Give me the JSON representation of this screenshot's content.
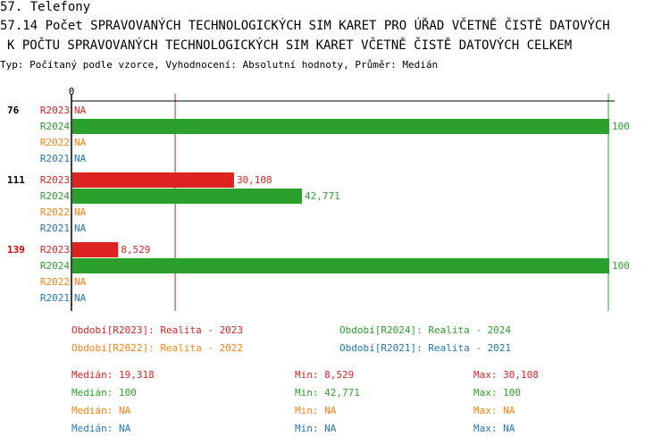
{
  "header": {
    "section": "57. Telefony",
    "title_line1": "57.14 Počet SPRAVOVANÝCH TECHNOLOGICKÝCH SIM KARET PRO ÚŘAD VČETNĚ ČISTĚ DATOVÝCH",
    "title_line2": "K POČTU SPRAVOVANÝCH TECHNOLOGICKÝCH SIM KARET VČETNĚ ČISTĚ DATOVÝCH CELKEM",
    "subtitle": "Typ: Počítaný podle vzorce, Vyhodnocení: Absolutní hodnoty, Průměr: Medián"
  },
  "chart_data": {
    "type": "bar",
    "orientation": "horizontal",
    "xlim": [
      0,
      100
    ],
    "x_tick_labels": [
      "0"
    ],
    "categories": [
      "76",
      "111",
      "139"
    ],
    "category_colors": [
      "#000000",
      "#000000",
      "#dd0000"
    ],
    "series": [
      {
        "name": "R2023",
        "color": "#dd2222",
        "values": [
          null,
          30.108,
          8.529
        ],
        "labels": [
          "NA",
          "30,108",
          "8,529"
        ]
      },
      {
        "name": "R2024",
        "color": "#2ca02c",
        "values": [
          100,
          42.771,
          100
        ],
        "labels": [
          "100",
          "42,771",
          "100"
        ]
      },
      {
        "name": "R2022",
        "color": "#ff7f0e",
        "values": [
          null,
          null,
          null
        ],
        "labels": [
          "NA",
          "NA",
          "NA"
        ]
      },
      {
        "name": "R2021",
        "color": "#1f77b4",
        "values": [
          null,
          null,
          null
        ],
        "labels": [
          "NA",
          "NA",
          "NA"
        ]
      }
    ],
    "reference_lines": [
      {
        "series": "R2023",
        "value": 19.318
      },
      {
        "series": "R2024",
        "value": 100
      }
    ],
    "legend": [
      {
        "text": "Období[R2023]: Realita - 2023",
        "color": "#dd2222"
      },
      {
        "text": "Období[R2024]: Realita - 2024",
        "color": "#2ca02c"
      },
      {
        "text": "Období[R2022]: Realita - 2022",
        "color": "#ff7f0e"
      },
      {
        "text": "Období[R2021]: Realita - 2021",
        "color": "#1f77b4"
      }
    ],
    "stats": [
      {
        "color": "#dd2222",
        "median": "Medián: 19,318",
        "min": "Min: 8,529",
        "max": "Max: 30,108"
      },
      {
        "color": "#2ca02c",
        "median": "Medián: 100",
        "min": "Min: 42,771",
        "max": "Max: 100"
      },
      {
        "color": "#ff7f0e",
        "median": "Medián: NA",
        "min": "Min: NA",
        "max": "Max: NA"
      },
      {
        "color": "#1f77b4",
        "median": "Medián: NA",
        "min": "Min: NA",
        "max": "Max: NA"
      }
    ]
  }
}
